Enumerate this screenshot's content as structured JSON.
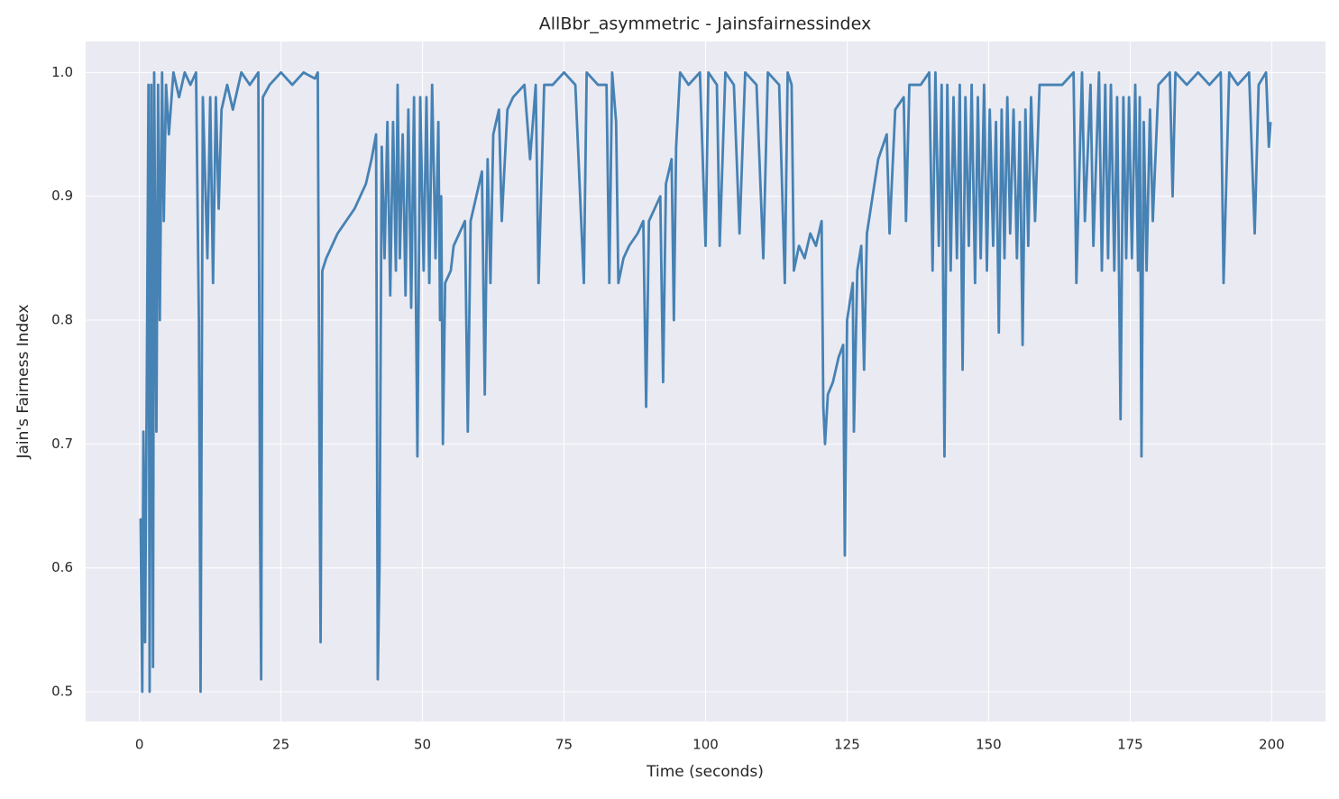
{
  "chart_data": {
    "type": "line",
    "title": "AllBbr_asymmetric - Jainsfairnessindex",
    "x_label": "Time (seconds)",
    "y_label": "Jain's Fairness Index",
    "xlim": [
      -9.5,
      209.5
    ],
    "ylim": [
      0.476,
      1.025
    ],
    "xticks": [
      0,
      25,
      50,
      75,
      100,
      125,
      150,
      175,
      200
    ],
    "yticks": [
      0.5,
      0.6,
      0.7,
      0.8,
      0.9,
      {
        "value": 1,
        "label": "1.0"
      }
    ],
    "grid": true,
    "series": [
      {
        "name": "Jain's Fairness Index",
        "color": "#4682b4",
        "x": [
          0.2,
          0.5,
          0.7,
          1,
          1.3,
          1.6,
          1.8,
          2.1,
          2.4,
          2.6,
          3,
          3.3,
          3.6,
          4,
          4.3,
          4.7,
          5.2,
          6,
          7,
          8,
          9,
          10,
          10.5,
          10.8,
          11.2,
          12,
          12.5,
          13,
          13.5,
          14,
          14.5,
          15.5,
          16.5,
          18,
          19.5,
          21,
          21.3,
          21.5,
          21.8,
          23,
          25,
          27,
          29,
          31,
          31.5,
          31.8,
          32,
          32.3,
          33,
          34,
          35,
          36.5,
          38,
          39,
          40,
          41,
          41.8,
          42.1,
          42.4,
          42.8,
          43.3,
          43.8,
          44.3,
          44.8,
          45.3,
          45.6,
          46,
          46.5,
          47,
          47.5,
          48,
          48.5,
          49.1,
          49.6,
          50.2,
          50.7,
          51.2,
          51.7,
          52.3,
          52.8,
          53.1,
          53.3,
          53.6,
          54,
          55,
          55.5,
          56.5,
          57.5,
          58,
          58.5,
          59.5,
          60.5,
          61,
          61.5,
          62,
          62.5,
          63.5,
          64,
          65,
          66,
          68,
          69,
          70,
          70.5,
          71.5,
          73,
          75,
          77,
          78.5,
          79,
          81,
          82.5,
          83,
          83.5,
          84.2,
          84.6,
          85.5,
          86.5,
          88,
          89,
          89.5,
          90,
          91,
          92,
          92.5,
          93,
          94,
          94.4,
          94.8,
          95.5,
          97,
          99,
          100,
          100.5,
          102,
          102.5,
          103.5,
          105,
          106,
          107,
          109,
          110.2,
          111,
          113,
          114,
          114.5,
          115.2,
          115.6,
          116.5,
          117.5,
          118.5,
          119.5,
          120.5,
          120.8,
          121.1,
          121.6,
          122.5,
          123.5,
          124.3,
          124.6,
          125,
          126,
          126.2,
          126.8,
          127.5,
          128,
          128.5,
          129.5,
          130.5,
          132,
          132.5,
          133.5,
          135,
          135.4,
          136,
          138,
          139.5,
          140.1,
          140.6,
          141.2,
          141.7,
          142.2,
          142.7,
          143.3,
          143.8,
          144.4,
          144.9,
          145.4,
          145.9,
          146.5,
          147,
          147.6,
          148.1,
          148.6,
          149.2,
          149.7,
          150.2,
          150.8,
          151.3,
          151.8,
          152.3,
          152.8,
          153.3,
          153.8,
          154.4,
          155,
          155.5,
          156,
          156.5,
          157,
          157.5,
          158.2,
          159,
          161,
          163,
          165,
          165.5,
          166.5,
          167,
          168,
          168.5,
          169.5,
          170,
          170.6,
          171.1,
          171.6,
          172.2,
          172.7,
          173.3,
          173.8,
          174.3,
          174.8,
          175.3,
          175.9,
          176.4,
          176.7,
          177,
          177.4,
          177.9,
          178.5,
          179,
          180,
          182,
          182.5,
          183,
          185,
          187,
          189,
          191,
          191.5,
          192.5,
          194,
          196,
          197,
          197.7,
          199,
          199.5,
          199.8
        ],
        "values": [
          0.64,
          0.5,
          0.71,
          0.54,
          0.75,
          0.99,
          0.5,
          0.99,
          0.52,
          1.0,
          0.71,
          0.99,
          0.8,
          1.0,
          0.88,
          0.99,
          0.95,
          1.0,
          0.98,
          1.0,
          0.99,
          1.0,
          0.8,
          0.5,
          0.98,
          0.85,
          0.98,
          0.83,
          0.98,
          0.89,
          0.97,
          0.99,
          0.97,
          1.0,
          0.99,
          1.0,
          0.64,
          0.51,
          0.98,
          0.99,
          1.0,
          0.99,
          1.0,
          0.995,
          1.0,
          0.69,
          0.54,
          0.84,
          0.85,
          0.86,
          0.87,
          0.88,
          0.89,
          0.9,
          0.91,
          0.93,
          0.95,
          0.51,
          0.6,
          0.94,
          0.85,
          0.96,
          0.82,
          0.96,
          0.84,
          0.99,
          0.85,
          0.95,
          0.82,
          0.97,
          0.81,
          0.98,
          0.69,
          0.98,
          0.84,
          0.98,
          0.83,
          0.99,
          0.85,
          0.96,
          0.8,
          0.9,
          0.7,
          0.83,
          0.84,
          0.86,
          0.87,
          0.88,
          0.71,
          0.88,
          0.9,
          0.92,
          0.74,
          0.93,
          0.83,
          0.95,
          0.97,
          0.88,
          0.97,
          0.98,
          0.99,
          0.93,
          0.99,
          0.83,
          0.99,
          0.99,
          1.0,
          0.99,
          0.83,
          1.0,
          0.99,
          0.99,
          0.83,
          1.0,
          0.96,
          0.83,
          0.85,
          0.86,
          0.87,
          0.88,
          0.73,
          0.88,
          0.89,
          0.9,
          0.75,
          0.91,
          0.93,
          0.8,
          0.94,
          1.0,
          0.99,
          1.0,
          0.86,
          1.0,
          0.99,
          0.86,
          1.0,
          0.99,
          0.87,
          1.0,
          0.99,
          0.85,
          1.0,
          0.99,
          0.83,
          1.0,
          0.99,
          0.84,
          0.86,
          0.85,
          0.87,
          0.86,
          0.88,
          0.73,
          0.7,
          0.74,
          0.75,
          0.77,
          0.78,
          0.61,
          0.8,
          0.83,
          0.71,
          0.84,
          0.86,
          0.76,
          0.87,
          0.9,
          0.93,
          0.95,
          0.87,
          0.97,
          0.98,
          0.88,
          0.99,
          0.99,
          1.0,
          0.84,
          1.0,
          0.86,
          0.99,
          0.69,
          0.99,
          0.84,
          0.98,
          0.85,
          0.99,
          0.76,
          0.98,
          0.86,
          0.99,
          0.83,
          0.98,
          0.85,
          0.99,
          0.84,
          0.97,
          0.86,
          0.96,
          0.79,
          0.97,
          0.85,
          0.98,
          0.87,
          0.97,
          0.85,
          0.96,
          0.78,
          0.97,
          0.86,
          0.98,
          0.88,
          0.99,
          0.99,
          0.99,
          1.0,
          0.83,
          1.0,
          0.88,
          0.99,
          0.86,
          1.0,
          0.84,
          0.99,
          0.85,
          0.99,
          0.84,
          0.98,
          0.72,
          0.98,
          0.85,
          0.98,
          0.85,
          0.99,
          0.84,
          0.98,
          0.69,
          0.96,
          0.84,
          0.97,
          0.88,
          0.99,
          1.0,
          0.9,
          1.0,
          0.99,
          1.0,
          0.99,
          1.0,
          0.83,
          1.0,
          0.99,
          1.0,
          0.87,
          0.99,
          1.0,
          0.94,
          0.96
        ]
      }
    ]
  }
}
